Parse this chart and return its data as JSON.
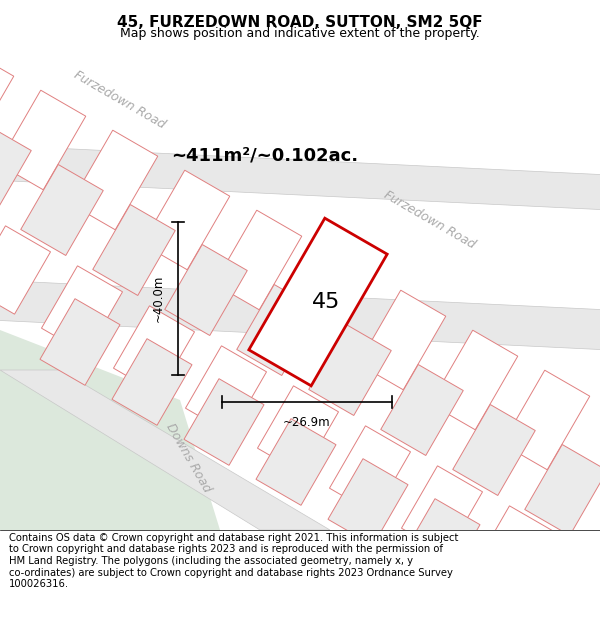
{
  "title_line1": "45, FURZEDOWN ROAD, SUTTON, SM2 5QF",
  "title_line2": "Map shows position and indicative extent of the property.",
  "area_text": "~411m²/~0.102ac.",
  "house_number": "45",
  "dim_vertical": "~40.0m",
  "dim_horizontal": "~26.9m",
  "road_name_upper": "Furzedown Road",
  "road_name_lower": "Furzedown Road",
  "road_name_diagonal": "Downs Road",
  "footer_wrapped": "Contains OS data © Crown copyright and database right 2021. This information is subject\nto Crown copyright and database rights 2023 and is reproduced with the permission of\nHM Land Registry. The polygons (including the associated geometry, namely x, y\nco-ordinates) are subject to Crown copyright and database rights 2023 Ordnance Survey\n100026316.",
  "map_bg": "#f0eeee",
  "road_fill": "#e8e8e8",
  "road_stroke": "#c8c8c8",
  "plot_line_color": "#cc0000",
  "plot_fill": "#ffffff",
  "parcel_stroke": "#e08080",
  "parcel_fill_light": "#ffffff",
  "parcel_fill_dark": "#ebebeb",
  "green_area": "#dce8dc",
  "title_fontsize": 11,
  "subtitle_fontsize": 9,
  "footer_fontsize": 7.2,
  "area_fontsize": 13,
  "road_label_fontsize": 9,
  "dim_fontsize": 8.5,
  "house_num_fontsize": 16
}
